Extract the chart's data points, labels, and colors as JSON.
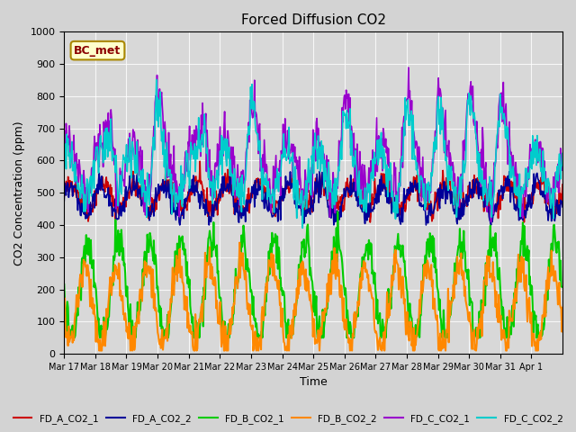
{
  "title": "Forced Diffusion CO2",
  "xlabel": "Time",
  "ylabel": "CO2 Concentration (ppm)",
  "ylim": [
    0,
    1000
  ],
  "fig_bg_color": "#d3d3d3",
  "ax_bg_color": "#d8d8d8",
  "annotation_text": "BC_met",
  "annotation_color": "#8b0000",
  "annotation_bg": "#ffffcc",
  "annotation_edge": "#aa8800",
  "x_tick_labels": [
    "Mar 17",
    "Mar 18",
    "Mar 19",
    "Mar 20",
    "Mar 21",
    "Mar 22",
    "Mar 23",
    "Mar 24",
    "Mar 25",
    "Mar 26",
    "Mar 27",
    "Mar 28",
    "Mar 29",
    "Mar 30",
    "Mar 31",
    "Apr 1"
  ],
  "y_tick_labels": [
    "0",
    "100",
    "200",
    "300",
    "400",
    "500",
    "600",
    "700",
    "800",
    "900",
    "1000"
  ],
  "y_tick_vals": [
    0,
    100,
    200,
    300,
    400,
    500,
    600,
    700,
    800,
    900,
    1000
  ],
  "series": [
    {
      "label": "FD_A_CO2_1",
      "color": "#cc0000",
      "lw": 1.2
    },
    {
      "label": "FD_A_CO2_2",
      "color": "#000099",
      "lw": 1.2
    },
    {
      "label": "FD_B_CO2_1",
      "color": "#00cc00",
      "lw": 1.5
    },
    {
      "label": "FD_B_CO2_2",
      "color": "#ff8800",
      "lw": 1.5
    },
    {
      "label": "FD_C_CO2_1",
      "color": "#9900cc",
      "lw": 1.2
    },
    {
      "label": "FD_C_CO2_2",
      "color": "#00cccc",
      "lw": 1.2
    }
  ]
}
